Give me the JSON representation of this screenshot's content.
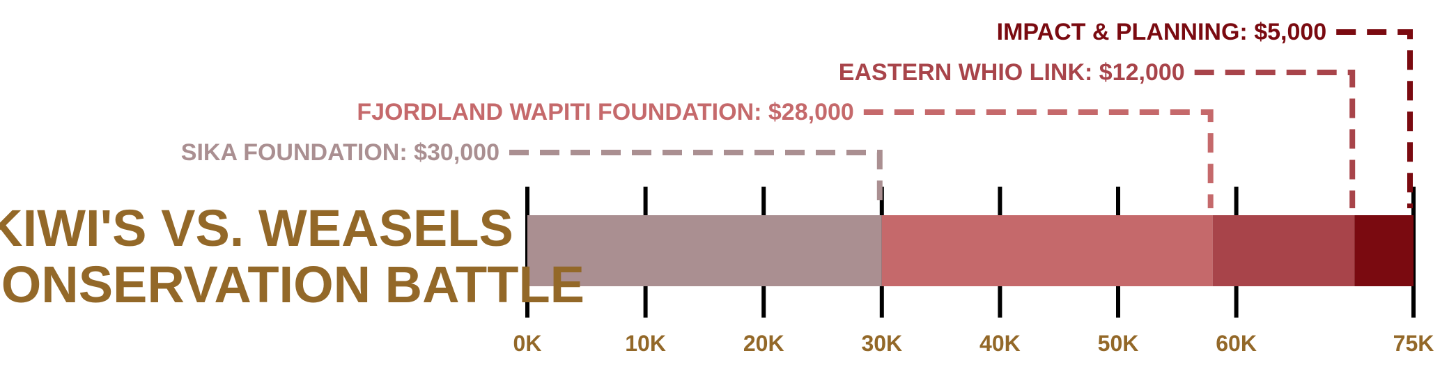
{
  "title": {
    "line1": "KIWI'S VS. WEASELS",
    "line2": "A CONSERVATION BATTLE",
    "color": "#936828"
  },
  "chart_data": {
    "type": "bar",
    "orientation": "horizontal-stacked",
    "xlim": [
      0,
      75000
    ],
    "ticks": [
      {
        "value": 0,
        "label": "0K"
      },
      {
        "value": 10000,
        "label": "10K"
      },
      {
        "value": 20000,
        "label": "20K"
      },
      {
        "value": 30000,
        "label": "30K"
      },
      {
        "value": 40000,
        "label": "40K"
      },
      {
        "value": 50000,
        "label": "50K"
      },
      {
        "value": 60000,
        "label": "60K"
      },
      {
        "value": 75000,
        "label": "75K"
      }
    ],
    "tick_label_color": "#936828",
    "series": [
      {
        "name": "SIKA FOUNDATION",
        "value": 30000,
        "label": "SIKA FOUNDATION: $30,000",
        "color": "#aa8f91"
      },
      {
        "name": "FJORDLAND WAPITI FOUNDATION",
        "value": 28000,
        "label": "FJORDLAND WAPITI FOUNDATION: $28,000",
        "color": "#c5696b"
      },
      {
        "name": "EASTERN WHIO LINK",
        "value": 12000,
        "label": "EASTERN WHIO LINK: $12,000",
        "color": "#a8444a"
      },
      {
        "name": "IMPACT & PLANNING",
        "value": 5000,
        "label": "IMPACT & PLANNING: $5,000",
        "color": "#7a0a10"
      }
    ]
  }
}
